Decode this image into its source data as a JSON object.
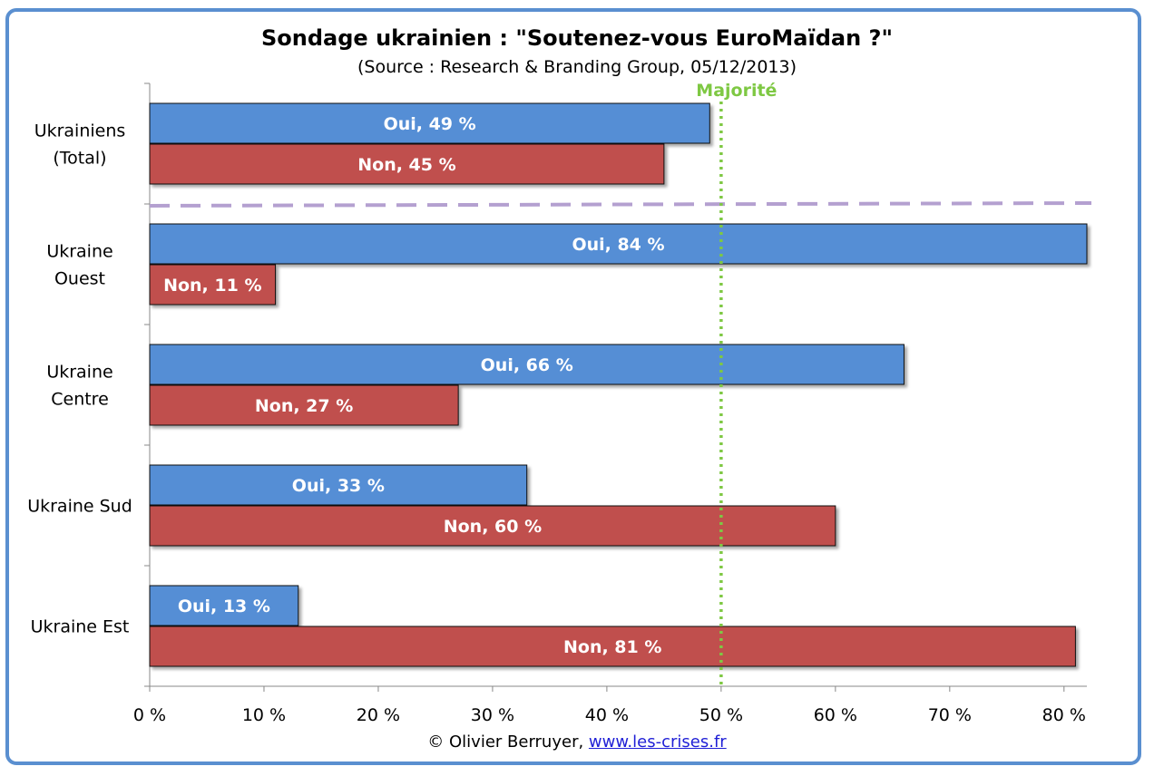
{
  "chart_data": {
    "type": "bar",
    "orientation": "horizontal",
    "title": "Sondage ukrainien : \"Soutenez-vous EuroMaïdan ?\"",
    "subtitle": "(Source : Research & Branding Group, 05/12/2013)",
    "categories": [
      [
        "Ukrainiens",
        "(Total)"
      ],
      [
        "Ukraine",
        "Ouest"
      ],
      [
        "Ukraine",
        "Centre"
      ],
      [
        "Ukraine Sud"
      ],
      [
        "Ukraine Est"
      ]
    ],
    "series": [
      {
        "name": "Oui",
        "color": "#558ed5",
        "values": [
          49,
          84,
          66,
          33,
          13
        ],
        "labels": [
          "Oui, 49 %",
          "Oui, 84 %",
          "Oui, 66 %",
          "Oui, 33 %",
          "Oui, 13 %"
        ]
      },
      {
        "name": "Non",
        "color": "#c0504d",
        "values": [
          45,
          11,
          27,
          60,
          81
        ],
        "labels": [
          "Non, 45 %",
          "Non, 11 %",
          "Non, 27 %",
          "Non, 60 %",
          "Non, 81 %"
        ]
      }
    ],
    "xlim": [
      0,
      82
    ],
    "xticks": [
      0,
      10,
      20,
      30,
      40,
      50,
      60,
      70,
      80
    ],
    "xtick_labels": [
      "0 %",
      "10 %",
      "20 %",
      "30 %",
      "40 %",
      "50 %",
      "60 %",
      "70 %",
      "80 %"
    ],
    "reference_line": {
      "value": 50,
      "label": "Majorité",
      "color": "#7ec843"
    },
    "separator_color": "#b4a0d0"
  },
  "footer": {
    "credit": "© Olivier Berruyer,",
    "link": "www.les-crises.fr"
  }
}
